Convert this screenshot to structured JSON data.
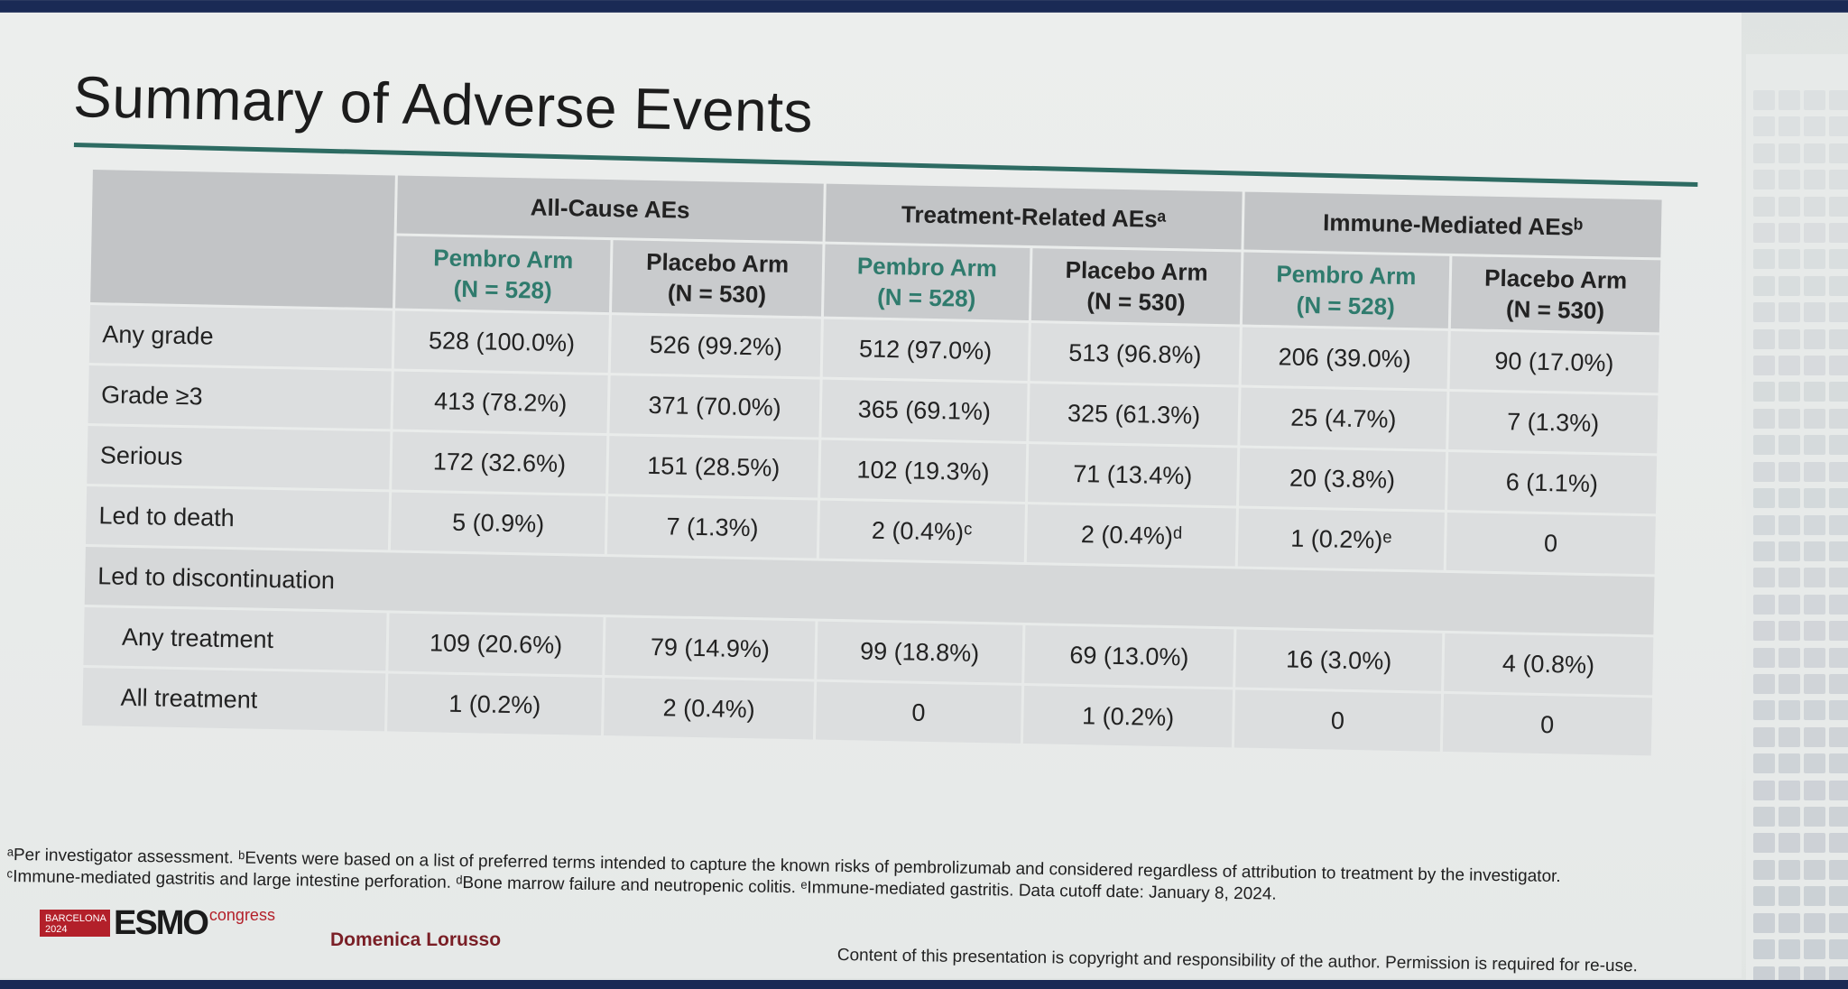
{
  "slide": {
    "title": "Summary of Adverse Events"
  },
  "table": {
    "groups": [
      "All-Cause AEs",
      "Treatment-Related AEsᵃ",
      "Immune-Mediated AEsᵇ"
    ],
    "subheaders": [
      {
        "arm": "Pembro Arm",
        "n": "(N = 528)"
      },
      {
        "arm": "Placebo Arm",
        "n": "(N = 530)"
      },
      {
        "arm": "Pembro Arm",
        "n": "(N = 528)"
      },
      {
        "arm": "Placebo Arm",
        "n": "(N = 530)"
      },
      {
        "arm": "Pembro Arm",
        "n": "(N = 528)"
      },
      {
        "arm": "Placebo Arm",
        "n": "(N = 530)"
      }
    ],
    "rows": [
      {
        "label": "Any grade",
        "cells": [
          "528 (100.0%)",
          "526 (99.2%)",
          "512 (97.0%)",
          "513 (96.8%)",
          "206 (39.0%)",
          "90 (17.0%)"
        ]
      },
      {
        "label": "Grade ≥3",
        "cells": [
          "413 (78.2%)",
          "371 (70.0%)",
          "365 (69.1%)",
          "325 (61.3%)",
          "25 (4.7%)",
          "7 (1.3%)"
        ]
      },
      {
        "label": "Serious",
        "cells": [
          "172 (32.6%)",
          "151 (28.5%)",
          "102 (19.3%)",
          "71 (13.4%)",
          "20 (3.8%)",
          "6 (1.1%)"
        ]
      },
      {
        "label": "Led to death",
        "cells": [
          "5 (0.9%)",
          "7 (1.3%)",
          "2 (0.4%)ᶜ",
          "2 (0.4%)ᵈ",
          "1 (0.2%)ᵉ",
          "0"
        ]
      }
    ],
    "section_label": "Led to discontinuation",
    "sub_rows": [
      {
        "label": "Any treatment",
        "cells": [
          "109 (20.6%)",
          "79 (14.9%)",
          "99 (18.8%)",
          "69 (13.0%)",
          "16 (3.0%)",
          "4 (0.8%)"
        ]
      },
      {
        "label": "All treatment",
        "cells": [
          "1 (0.2%)",
          "2 (0.4%)",
          "0",
          "1 (0.2%)",
          "0",
          "0"
        ]
      }
    ]
  },
  "footnotes": {
    "line1": "ᵃPer investigator assessment. ᵇEvents were based on a list of preferred terms intended to capture the known risks of pembrolizumab and considered regardless of attribution to treatment by the investigator.",
    "line2": "ᶜImmune-mediated gastritis and large intestine perforation. ᵈBone marrow failure and neutropenic colitis. ᵉImmune-mediated gastritis.  Data cutoff date: January 8, 2024."
  },
  "footer": {
    "logo_city": "BARCELONA",
    "logo_year": "2024",
    "logo_esmo": "ESMO",
    "logo_congress": "congress",
    "author": "Domenica Lorusso",
    "copyright": "Content of this presentation is copyright and responsibility of the author. Permission is required for re-use."
  }
}
